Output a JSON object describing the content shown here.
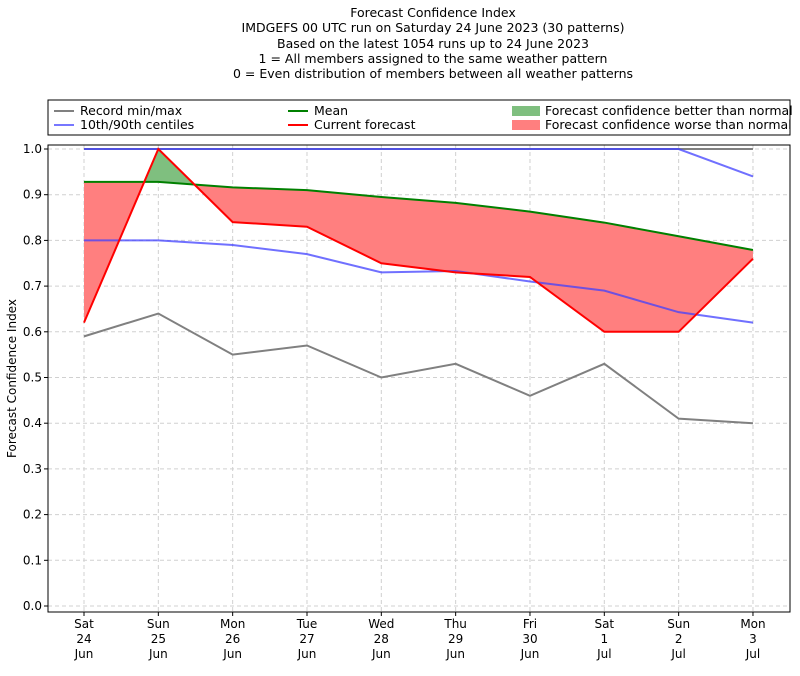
{
  "chart_data": {
    "type": "line",
    "title_lines": [
      "Forecast Confidence Index",
      "IMDGEFS 00 UTC run on Saturday 24 June 2023 (30 patterns)",
      "Based on the latest 1054 runs up to 24 June 2023",
      "1 = All members assigned to the same weather pattern",
      "0 = Even distribution of members between all weather patterns"
    ],
    "ylabel": "Forecast Confidence Index",
    "xlabel": "",
    "ylim": [
      -0.01,
      1.01
    ],
    "yticks": [
      "0.0",
      "0.1",
      "0.2",
      "0.3",
      "0.4",
      "0.5",
      "0.6",
      "0.7",
      "0.8",
      "0.9",
      "1.0"
    ],
    "grid": true,
    "legend_placement": "top, above plot",
    "categories": [
      [
        "Sat",
        "24",
        "Jun"
      ],
      [
        "Sun",
        "25",
        "Jun"
      ],
      [
        "Mon",
        "26",
        "Jun"
      ],
      [
        "Tue",
        "27",
        "Jun"
      ],
      [
        "Wed",
        "28",
        "Jun"
      ],
      [
        "Thu",
        "29",
        "Jun"
      ],
      [
        "Fri",
        "30",
        "Jun"
      ],
      [
        "Sat",
        "1",
        "Jul"
      ],
      [
        "Sun",
        "2",
        "Jul"
      ],
      [
        "Mon",
        "3",
        "Jul"
      ]
    ],
    "series": [
      {
        "name": "Record min/max",
        "color": "#808080",
        "min": [
          0.59,
          0.64,
          0.55,
          0.57,
          0.5,
          0.53,
          0.46,
          0.53,
          0.41,
          0.4
        ],
        "max": [
          1,
          1,
          1,
          1,
          1,
          1,
          1,
          1,
          1,
          1
        ]
      },
      {
        "name": "10th/90th centiles",
        "color": "#7777ff",
        "p10": [
          0.8,
          0.8,
          0.79,
          0.77,
          0.73,
          0.733,
          0.71,
          0.69,
          0.643,
          0.62
        ],
        "p90": [
          1,
          1,
          1,
          1,
          1,
          1,
          1,
          1,
          1,
          0.94
        ]
      },
      {
        "name": "Mean",
        "color": "#008000",
        "values": [
          0.928,
          0.928,
          0.916,
          0.91,
          0.895,
          0.882,
          0.863,
          0.839,
          0.809,
          0.779
        ]
      },
      {
        "name": "Current forecast",
        "color": "#ff0000",
        "values": [
          0.62,
          1.0,
          0.84,
          0.83,
          0.75,
          0.73,
          0.72,
          0.6,
          0.6,
          0.76
        ]
      }
    ],
    "fills": [
      {
        "name": "Forecast confidence better than normal",
        "color": "#7fbf7f"
      },
      {
        "name": "Forecast confidence worse than normal",
        "color": "#ff7f7f"
      }
    ]
  }
}
